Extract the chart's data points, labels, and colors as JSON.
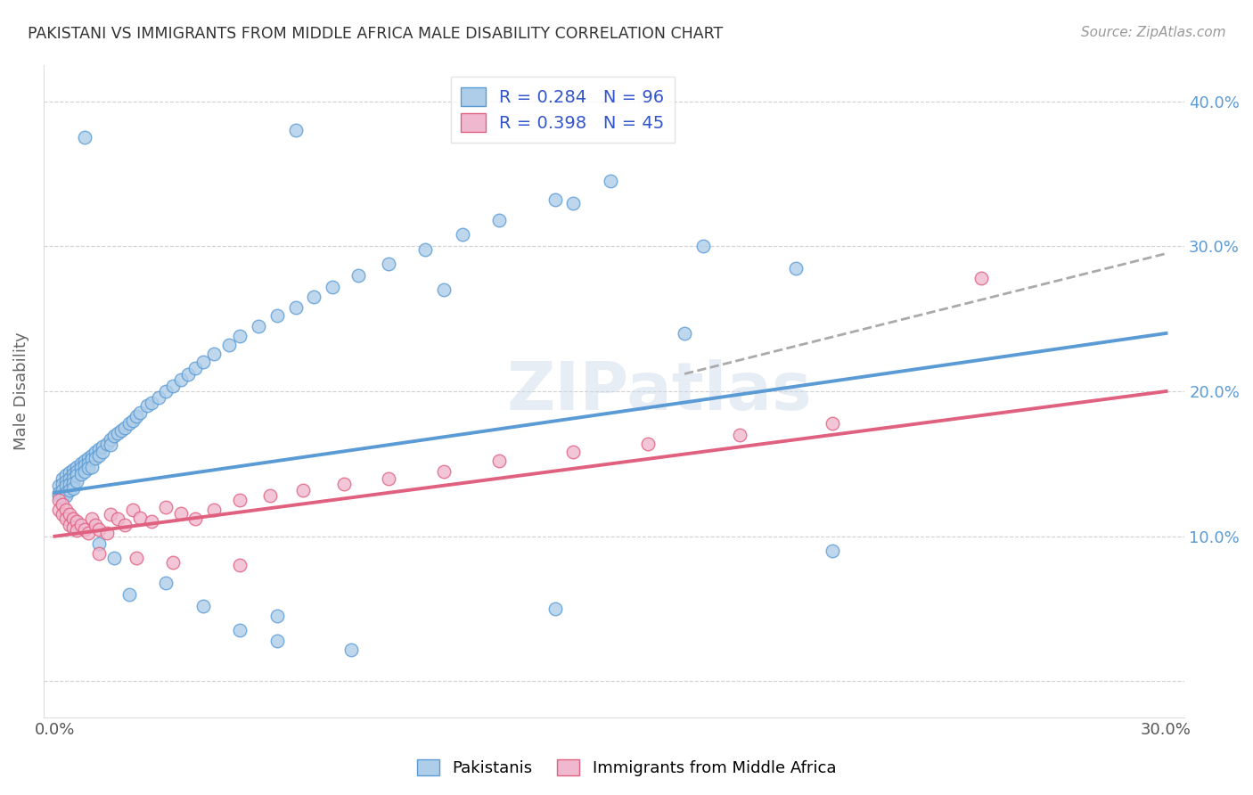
{
  "title": "PAKISTANI VS IMMIGRANTS FROM MIDDLE AFRICA MALE DISABILITY CORRELATION CHART",
  "source": "Source: ZipAtlas.com",
  "ylabel": "Male Disability",
  "xlim": [
    -0.003,
    0.305
  ],
  "ylim": [
    -0.025,
    0.425
  ],
  "xtick_positions": [
    0.0,
    0.05,
    0.1,
    0.15,
    0.2,
    0.25,
    0.3
  ],
  "xtick_labels": [
    "0.0%",
    "",
    "",
    "",
    "",
    "",
    "30.0%"
  ],
  "ytick_positions": [
    0.0,
    0.1,
    0.2,
    0.3,
    0.4
  ],
  "ytick_labels_right": [
    "",
    "10.0%",
    "20.0%",
    "30.0%",
    "40.0%"
  ],
  "watermark": "ZIPatlas",
  "blue_color": "#5b9bd5",
  "pink_color": "#e06080",
  "blue_fill": "#aecde8",
  "pink_fill": "#f0b8ce",
  "blue_edge": "#5b9bd5",
  "pink_edge": "#e06080",
  "trend_blue": [
    0.0,
    0.13,
    0.3,
    0.24
  ],
  "trend_pink": [
    0.0,
    0.1,
    0.3,
    0.2
  ],
  "trend_dashed": [
    0.17,
    0.212,
    0.3,
    0.295
  ],
  "grid_color": "#cccccc",
  "background_color": "#ffffff",
  "title_color": "#333333",
  "right_tick_color": "#5b9bd5",
  "legend_text_color": "#3355cc",
  "pak_x": [
    0.001,
    0.001,
    0.001,
    0.002,
    0.002,
    0.002,
    0.002,
    0.003,
    0.003,
    0.003,
    0.003,
    0.003,
    0.004,
    0.004,
    0.004,
    0.004,
    0.005,
    0.005,
    0.005,
    0.005,
    0.005,
    0.006,
    0.006,
    0.006,
    0.006,
    0.007,
    0.007,
    0.007,
    0.008,
    0.008,
    0.008,
    0.009,
    0.009,
    0.009,
    0.01,
    0.01,
    0.01,
    0.011,
    0.011,
    0.012,
    0.012,
    0.013,
    0.013,
    0.014,
    0.015,
    0.015,
    0.016,
    0.017,
    0.018,
    0.019,
    0.02,
    0.021,
    0.022,
    0.023,
    0.025,
    0.026,
    0.028,
    0.03,
    0.032,
    0.034,
    0.036,
    0.038,
    0.04,
    0.043,
    0.047,
    0.05,
    0.055,
    0.06,
    0.065,
    0.07,
    0.075,
    0.082,
    0.09,
    0.1,
    0.11,
    0.12,
    0.135,
    0.15,
    0.008,
    0.065,
    0.105,
    0.14,
    0.175,
    0.2,
    0.21,
    0.17,
    0.06,
    0.135,
    0.012,
    0.016,
    0.02,
    0.03,
    0.04,
    0.05,
    0.06,
    0.08
  ],
  "pak_y": [
    0.135,
    0.13,
    0.128,
    0.14,
    0.136,
    0.132,
    0.128,
    0.142,
    0.138,
    0.135,
    0.13,
    0.128,
    0.144,
    0.14,
    0.136,
    0.132,
    0.146,
    0.143,
    0.14,
    0.137,
    0.133,
    0.148,
    0.145,
    0.142,
    0.138,
    0.15,
    0.147,
    0.143,
    0.152,
    0.149,
    0.145,
    0.154,
    0.15,
    0.147,
    0.156,
    0.153,
    0.148,
    0.158,
    0.154,
    0.16,
    0.156,
    0.162,
    0.158,
    0.164,
    0.167,
    0.163,
    0.169,
    0.171,
    0.173,
    0.175,
    0.178,
    0.18,
    0.183,
    0.185,
    0.19,
    0.192,
    0.196,
    0.2,
    0.204,
    0.208,
    0.212,
    0.216,
    0.22,
    0.226,
    0.232,
    0.238,
    0.245,
    0.252,
    0.258,
    0.265,
    0.272,
    0.28,
    0.288,
    0.298,
    0.308,
    0.318,
    0.332,
    0.345,
    0.375,
    0.38,
    0.27,
    0.33,
    0.3,
    0.285,
    0.09,
    0.24,
    0.045,
    0.05,
    0.095,
    0.085,
    0.06,
    0.068,
    0.052,
    0.035,
    0.028,
    0.022
  ],
  "imm_x": [
    0.001,
    0.001,
    0.002,
    0.002,
    0.003,
    0.003,
    0.004,
    0.004,
    0.005,
    0.005,
    0.006,
    0.006,
    0.007,
    0.008,
    0.009,
    0.01,
    0.011,
    0.012,
    0.014,
    0.015,
    0.017,
    0.019,
    0.021,
    0.023,
    0.026,
    0.03,
    0.034,
    0.038,
    0.043,
    0.05,
    0.058,
    0.067,
    0.078,
    0.09,
    0.105,
    0.12,
    0.14,
    0.16,
    0.185,
    0.21,
    0.012,
    0.022,
    0.032,
    0.05,
    0.25
  ],
  "imm_y": [
    0.125,
    0.118,
    0.122,
    0.115,
    0.118,
    0.112,
    0.115,
    0.108,
    0.112,
    0.106,
    0.11,
    0.104,
    0.108,
    0.105,
    0.102,
    0.112,
    0.108,
    0.105,
    0.102,
    0.115,
    0.112,
    0.108,
    0.118,
    0.113,
    0.11,
    0.12,
    0.116,
    0.112,
    0.118,
    0.125,
    0.128,
    0.132,
    0.136,
    0.14,
    0.145,
    0.152,
    0.158,
    0.164,
    0.17,
    0.178,
    0.088,
    0.085,
    0.082,
    0.08,
    0.278
  ]
}
